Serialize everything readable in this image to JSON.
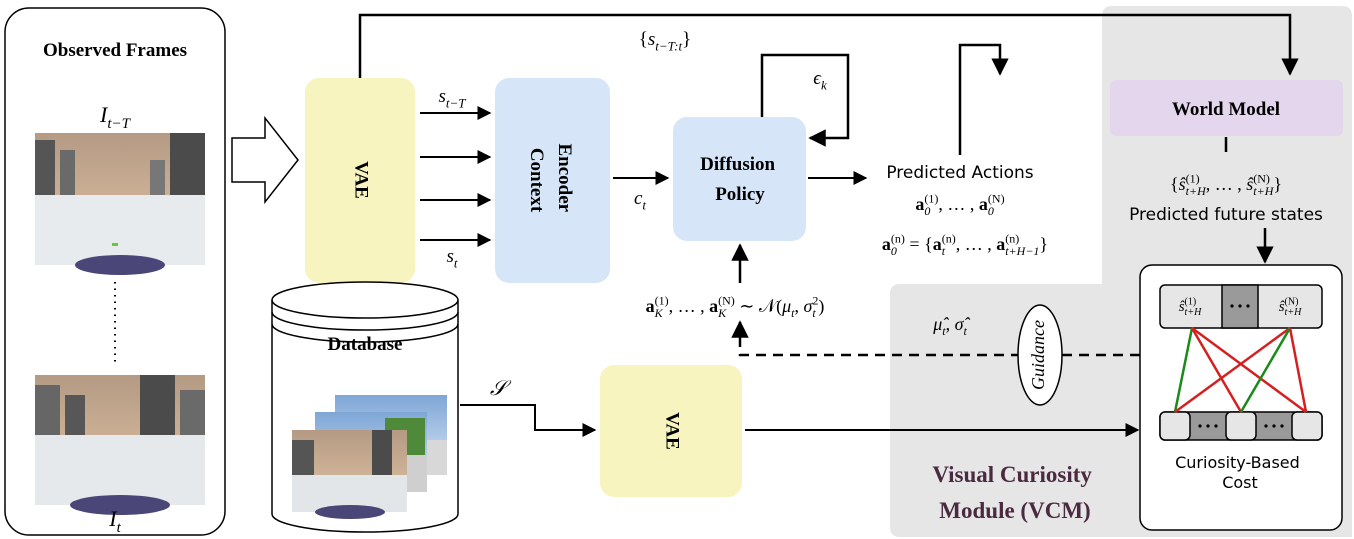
{
  "observed_frames": {
    "title": "Observed Frames",
    "first_frame": [
      {
        "base": "I",
        "sub": "t−T"
      }
    ],
    "last_frame": [
      {
        "base": "I",
        "sub": "t"
      }
    ]
  },
  "vae_top": {
    "label": "VAE"
  },
  "vae_bottom": {
    "label": "VAE"
  },
  "encoder": {
    "lines": [
      "Encoder",
      "Context"
    ]
  },
  "diffusion_policy": {
    "lines": [
      "Diffusion",
      "Policy"
    ]
  },
  "labels": {
    "state_window": [
      "{",
      {
        "base": "s",
        "sub": "t−T:t"
      },
      "}"
    ],
    "s_first": [
      {
        "base": "s",
        "sub": "t−T"
      }
    ],
    "s_last": [
      {
        "base": "s",
        "sub": "t"
      }
    ],
    "context": [
      {
        "base": "c",
        "sub": "t"
      }
    ],
    "noise": [
      {
        "base": "ϵ",
        "sub": "k"
      }
    ],
    "noisy_actions": [
      {
        "base": "a",
        "sub": "K",
        "sup": "(1)"
      },
      ", … , ",
      {
        "base": "a",
        "sub": "K",
        "sup": "(N)"
      },
      " ∼ 𝒩(",
      {
        "base": "μ",
        "sub": "t"
      },
      ", ",
      {
        "base": "σ",
        "sub": "t",
        "sup": "2"
      },
      ")"
    ]
  },
  "predicted_actions": {
    "title": "Predicted Actions",
    "set": [
      {
        "base": "a",
        "sub": "0",
        "sup": "(1)"
      },
      ", … , ",
      {
        "base": "a",
        "sub": "0",
        "sup": "(N)"
      }
    ],
    "definition": [
      {
        "base": "a",
        "sub": "0",
        "sup": "(n)"
      },
      " = {",
      {
        "base": "a",
        "sub": "t",
        "sup": "(n)"
      },
      ", … , ",
      {
        "base": "a",
        "sub": "t+H−1",
        "sup": "(n)"
      },
      "}"
    ]
  },
  "world_model": {
    "title": "World Model",
    "states": [
      "{",
      {
        "base": "ŝ",
        "sub": "t+H",
        "sup": "(1)"
      },
      ", … , ",
      {
        "base": "ŝ",
        "sub": "t+H",
        "sup": "(N)"
      },
      "}"
    ],
    "caption": "Predicted future states"
  },
  "database": {
    "title": "Database",
    "output": [
      {
        "base": "𝒮"
      }
    ]
  },
  "guidance": {
    "label": "Guidance",
    "stats": [
      {
        "base": "μ̂",
        "sub": "t"
      },
      ", ",
      {
        "base": "σ̂",
        "sub": "t"
      }
    ]
  },
  "vcm": {
    "lines": [
      "Visual Curiosity",
      "Module (VCM)"
    ]
  },
  "cost": {
    "first_state": [
      {
        "base": "ŝ",
        "sub": "t+H",
        "sup": "(1)"
      }
    ],
    "last_state": [
      {
        "base": "ŝ",
        "sub": "t+H",
        "sup": "(N)"
      }
    ],
    "lines": [
      "Curiosity-Based",
      "Cost"
    ]
  }
}
